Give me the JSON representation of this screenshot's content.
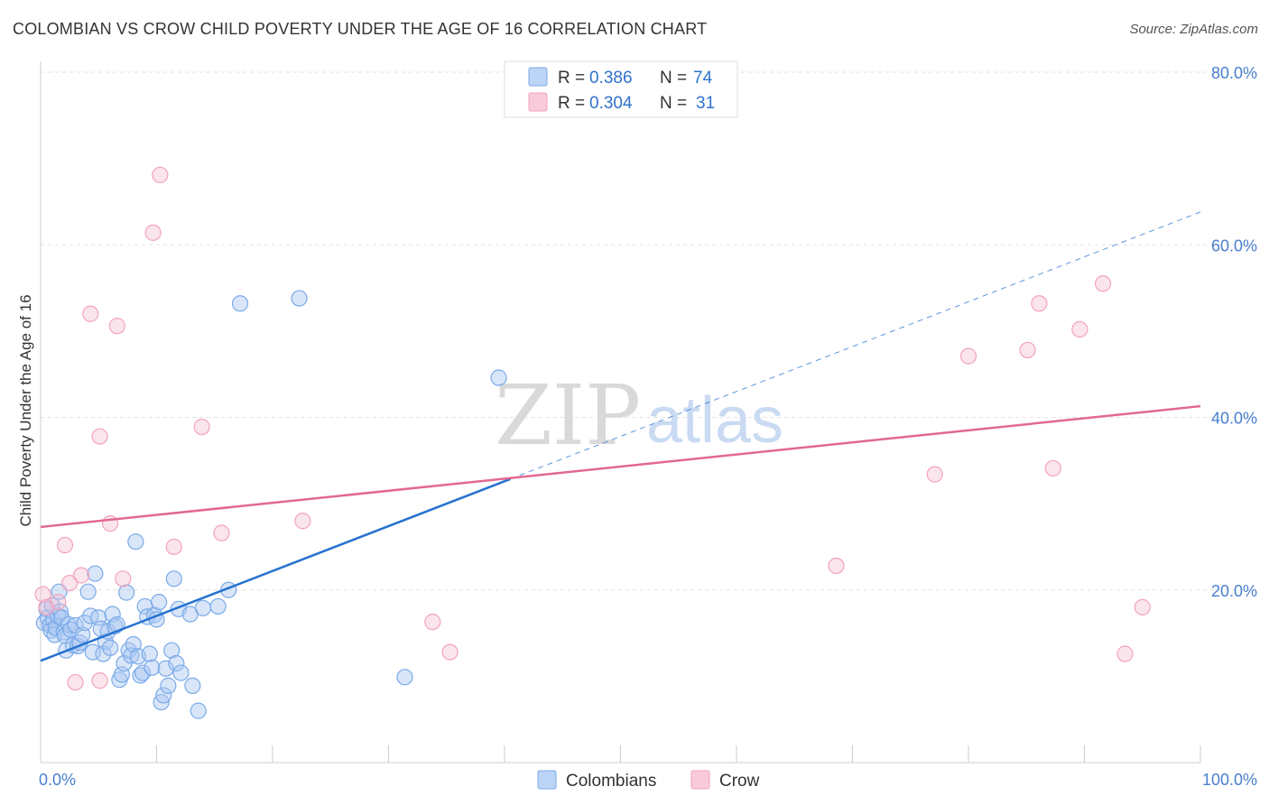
{
  "chart_data": {
    "type": "scatter",
    "title": "COLOMBIAN VS CROW CHILD POVERTY UNDER THE AGE OF 16 CORRELATION CHART",
    "source": "Source: ZipAtlas.com",
    "ylabel": "Child Poverty Under the Age of 16",
    "xlabel": "",
    "xlim": [
      0,
      100
    ],
    "ylim": [
      0,
      80
    ],
    "x_tick_labels": [
      {
        "value": 0,
        "label": "0.0%"
      },
      {
        "value": 100,
        "label": "100.0%"
      }
    ],
    "y_tick_labels": [
      {
        "value": 20,
        "label": "20.0%"
      },
      {
        "value": 40,
        "label": "40.0%"
      },
      {
        "value": 60,
        "label": "60.0%"
      },
      {
        "value": 80,
        "label": "80.0%"
      }
    ],
    "grid": true,
    "legend_position": "top-center",
    "watermark": {
      "part1": "ZIP",
      "part2": "atlas"
    },
    "series": [
      {
        "name": "Colombians",
        "color": "#7aaae8",
        "line_color": "#2672d0",
        "stats": {
          "r_label": "R =",
          "r_value": "0.386",
          "n_label": "N =",
          "n_value": "74"
        },
        "trend": {
          "x_start": 0,
          "y_start": 11.8,
          "x_solid_end": 40.5,
          "x_end": 100,
          "y_end": 63.8
        },
        "points": [
          [
            0.3,
            16.2
          ],
          [
            0.5,
            17.8
          ],
          [
            0.6,
            16.8
          ],
          [
            0.8,
            15.9
          ],
          [
            0.9,
            15.3
          ],
          [
            1.0,
            18.2
          ],
          [
            1.1,
            16.5
          ],
          [
            1.2,
            14.8
          ],
          [
            1.3,
            15.6
          ],
          [
            1.5,
            17.0
          ],
          [
            1.6,
            19.8
          ],
          [
            1.7,
            17.5
          ],
          [
            1.8,
            16.8
          ],
          [
            2.0,
            15.1
          ],
          [
            2.1,
            14.7
          ],
          [
            2.2,
            13.0
          ],
          [
            2.4,
            16.0
          ],
          [
            2.6,
            15.4
          ],
          [
            2.8,
            13.6
          ],
          [
            3.0,
            15.9
          ],
          [
            3.2,
            13.5
          ],
          [
            3.4,
            13.9
          ],
          [
            3.6,
            14.8
          ],
          [
            3.8,
            16.2
          ],
          [
            4.1,
            19.8
          ],
          [
            4.3,
            17.0
          ],
          [
            4.5,
            12.8
          ],
          [
            4.7,
            21.9
          ],
          [
            5.0,
            16.8
          ],
          [
            5.2,
            15.5
          ],
          [
            5.4,
            12.6
          ],
          [
            5.6,
            14.0
          ],
          [
            5.8,
            15.2
          ],
          [
            6.0,
            13.3
          ],
          [
            6.2,
            17.2
          ],
          [
            6.4,
            15.8
          ],
          [
            6.6,
            16.0
          ],
          [
            6.8,
            9.6
          ],
          [
            7.0,
            10.2
          ],
          [
            7.2,
            11.5
          ],
          [
            7.4,
            19.7
          ],
          [
            7.6,
            13.0
          ],
          [
            7.8,
            12.4
          ],
          [
            8.0,
            13.7
          ],
          [
            8.2,
            25.6
          ],
          [
            8.4,
            12.3
          ],
          [
            8.6,
            10.1
          ],
          [
            8.8,
            10.4
          ],
          [
            9.0,
            18.1
          ],
          [
            9.2,
            16.9
          ],
          [
            9.4,
            12.6
          ],
          [
            9.6,
            11.0
          ],
          [
            9.8,
            17.1
          ],
          [
            10.0,
            16.6
          ],
          [
            10.2,
            18.6
          ],
          [
            10.4,
            7.0
          ],
          [
            10.6,
            7.8
          ],
          [
            10.8,
            10.9
          ],
          [
            11.0,
            8.9
          ],
          [
            11.3,
            13.0
          ],
          [
            11.5,
            21.3
          ],
          [
            11.7,
            11.5
          ],
          [
            11.9,
            17.8
          ],
          [
            12.1,
            10.4
          ],
          [
            12.9,
            17.2
          ],
          [
            13.1,
            8.9
          ],
          [
            13.6,
            6.0
          ],
          [
            14.0,
            17.9
          ],
          [
            15.3,
            18.1
          ],
          [
            16.2,
            20.0
          ],
          [
            17.2,
            53.2
          ],
          [
            22.3,
            53.8
          ],
          [
            31.4,
            9.9
          ],
          [
            39.5,
            44.6
          ]
        ]
      },
      {
        "name": "Crow",
        "color": "#f3a2bd",
        "line_color": "#e26891",
        "stats": {
          "r_label": "R =",
          "r_value": "0.304",
          "n_label": "N =",
          "n_value": "31"
        },
        "trend": {
          "x_start": 0,
          "y_start": 27.3,
          "x_end": 100,
          "y_end": 41.3
        },
        "points": [
          [
            0.2,
            19.5
          ],
          [
            0.5,
            18.0
          ],
          [
            1.5,
            18.6
          ],
          [
            2.1,
            25.2
          ],
          [
            2.5,
            20.8
          ],
          [
            3.0,
            9.3
          ],
          [
            3.5,
            21.7
          ],
          [
            4.3,
            52.0
          ],
          [
            5.1,
            9.5
          ],
          [
            5.1,
            37.8
          ],
          [
            6.0,
            27.7
          ],
          [
            6.6,
            50.6
          ],
          [
            7.1,
            21.3
          ],
          [
            9.7,
            61.4
          ],
          [
            10.3,
            68.1
          ],
          [
            11.5,
            25.0
          ],
          [
            13.9,
            38.9
          ],
          [
            15.6,
            26.6
          ],
          [
            22.6,
            28.0
          ],
          [
            33.8,
            16.3
          ],
          [
            35.3,
            12.8
          ],
          [
            68.6,
            22.8
          ],
          [
            77.1,
            33.4
          ],
          [
            80.0,
            47.1
          ],
          [
            85.1,
            47.8
          ],
          [
            86.1,
            53.2
          ],
          [
            87.3,
            34.1
          ],
          [
            89.6,
            50.2
          ],
          [
            91.6,
            55.5
          ],
          [
            93.5,
            12.6
          ],
          [
            95.0,
            18.0
          ]
        ]
      }
    ]
  }
}
